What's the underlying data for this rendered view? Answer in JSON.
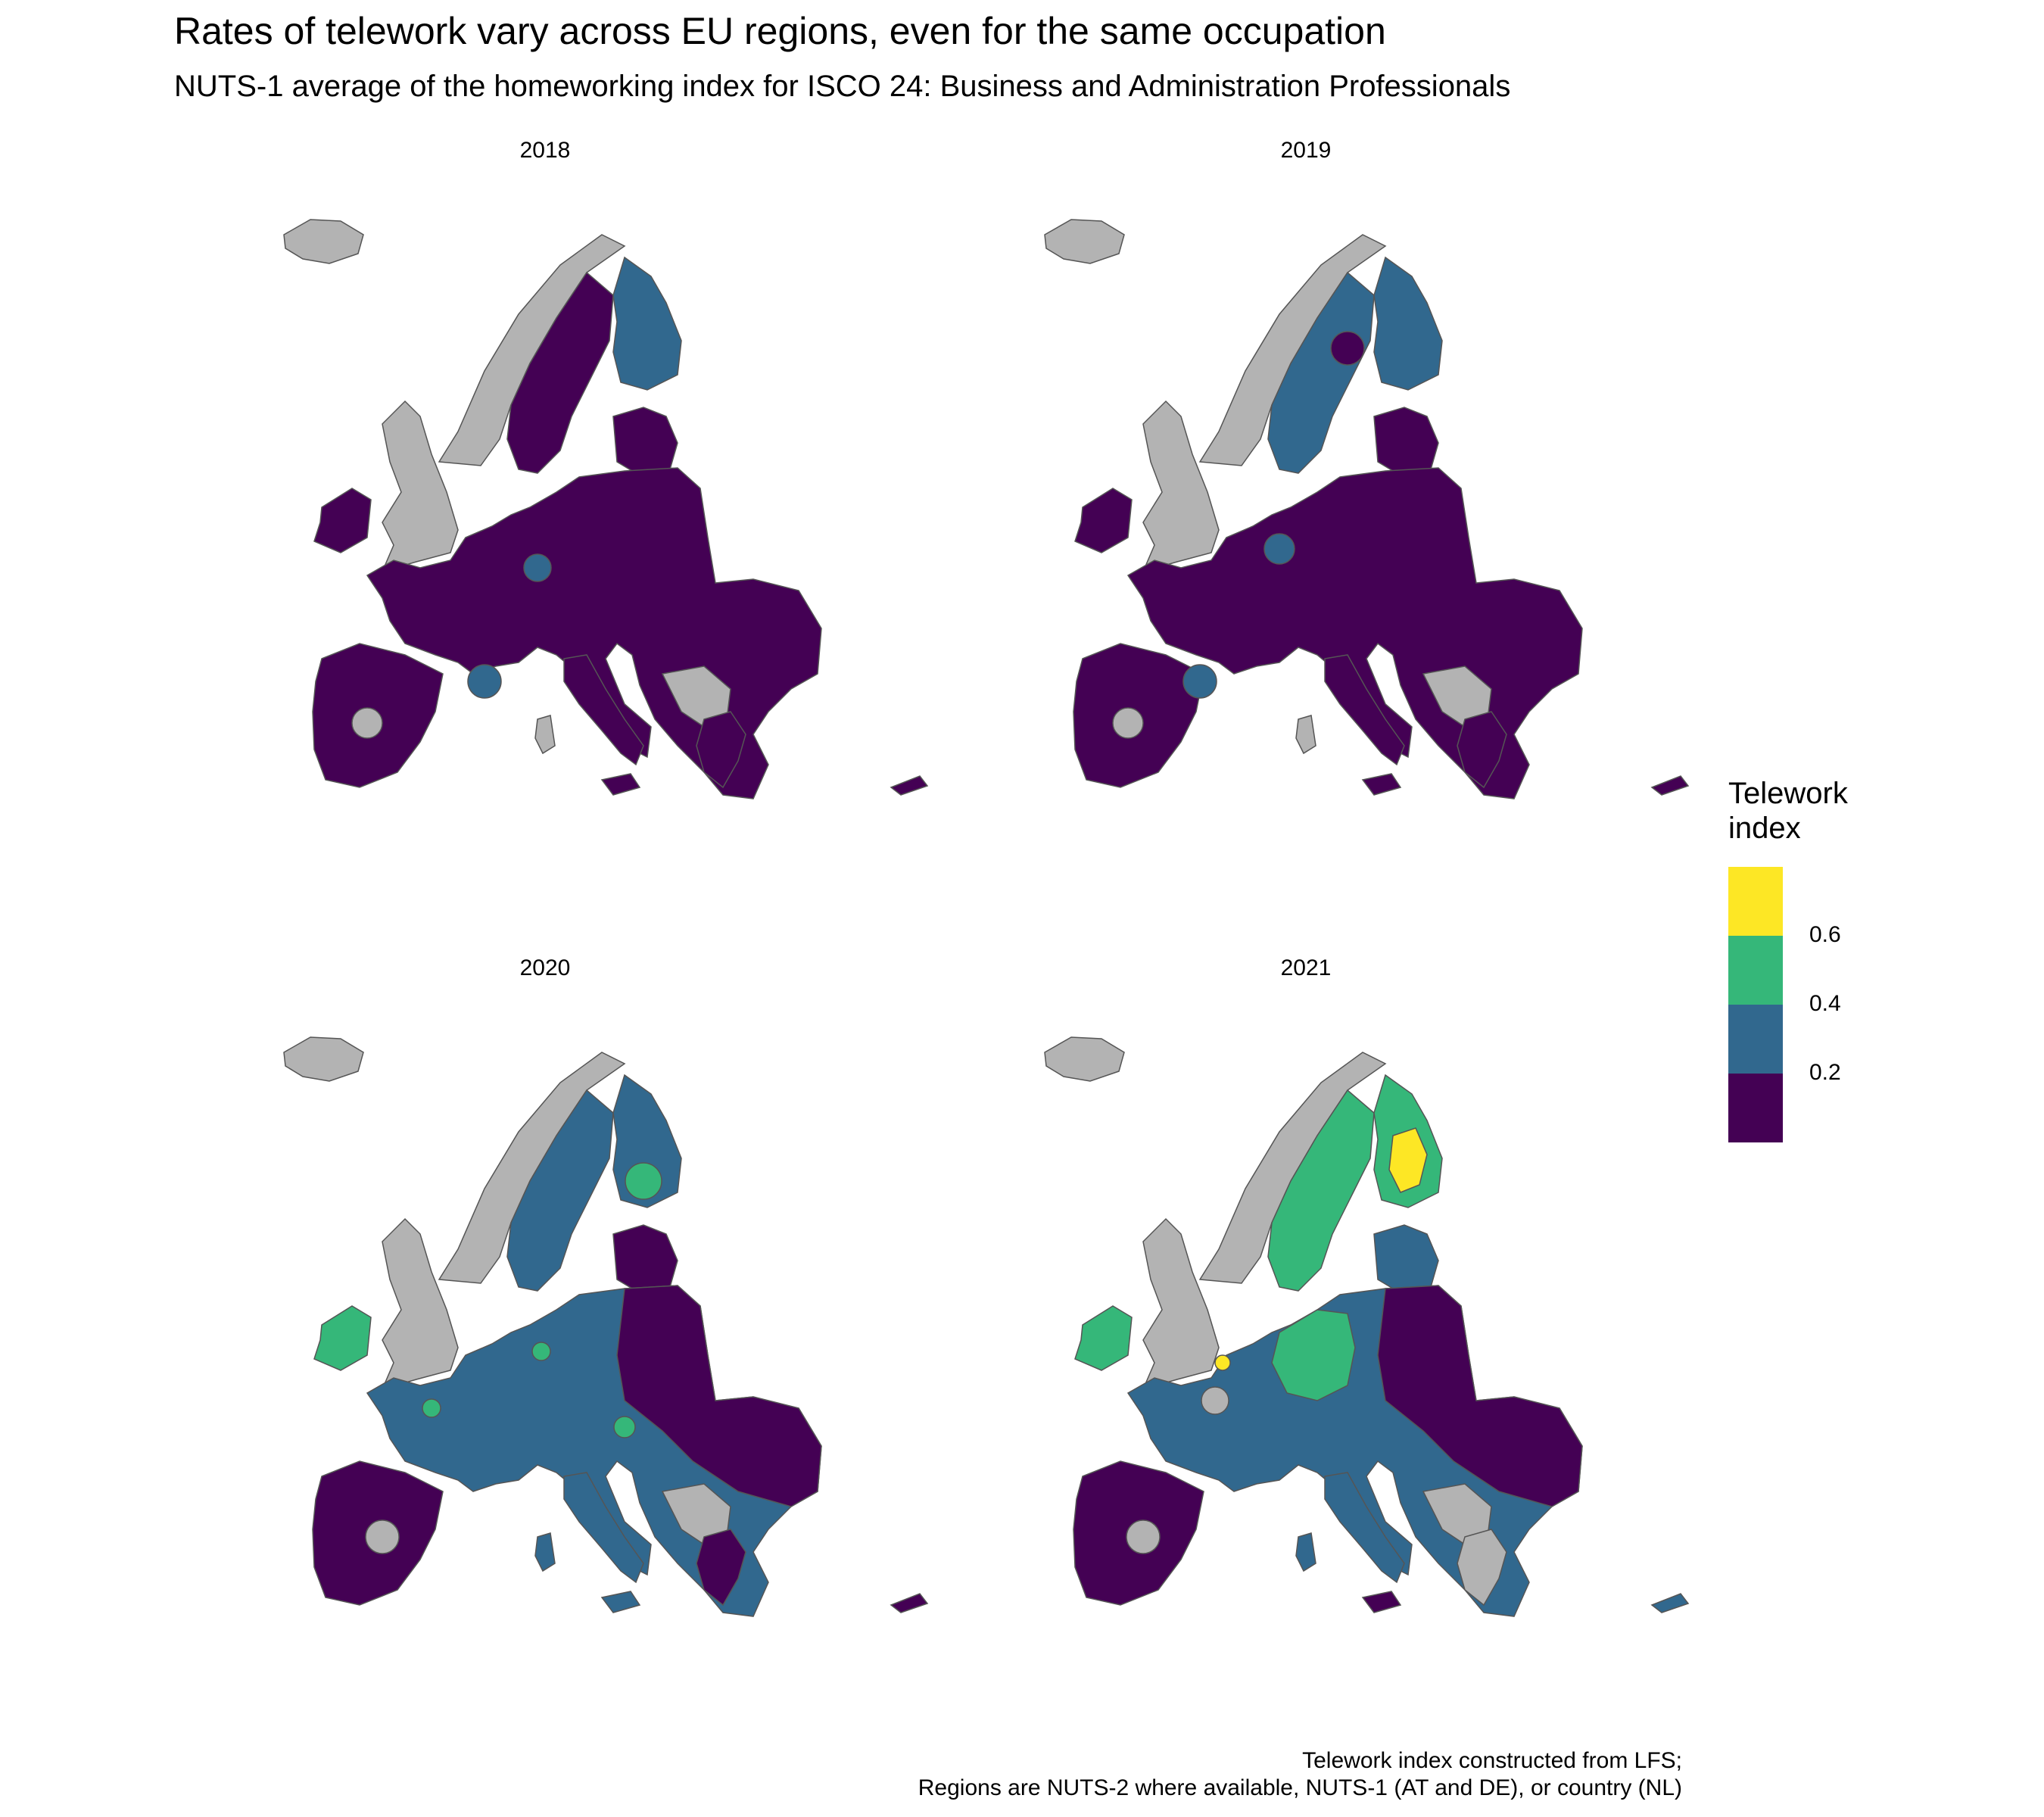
{
  "title": "Rates of telework vary across EU regions, even for the same occupation",
  "subtitle": "NUTS-1 average of the homeworking index for ISCO 24: Business and Administration Professionals",
  "panels": [
    {
      "label": "2018"
    },
    {
      "label": "2019"
    },
    {
      "label": "2020"
    },
    {
      "label": "2021"
    }
  ],
  "legend": {
    "title_line1": "Telework",
    "title_line2": "index",
    "ticks": [
      "0.6",
      "0.4",
      "0.2"
    ],
    "bins": [
      {
        "range": "0.6–0.8",
        "color": "#fde725"
      },
      {
        "range": "0.4–0.6",
        "color": "#35b779"
      },
      {
        "range": "0.2–0.4",
        "color": "#31688e"
      },
      {
        "range": "0.0–0.2",
        "color": "#440154"
      }
    ],
    "no_data_color": "#b3b3b3"
  },
  "caption": {
    "line1": "Telework index constructed from LFS;",
    "line2": "Regions are NUTS-2 where available, NUTS-1 (AT and DE), or country (NL)"
  }
}
